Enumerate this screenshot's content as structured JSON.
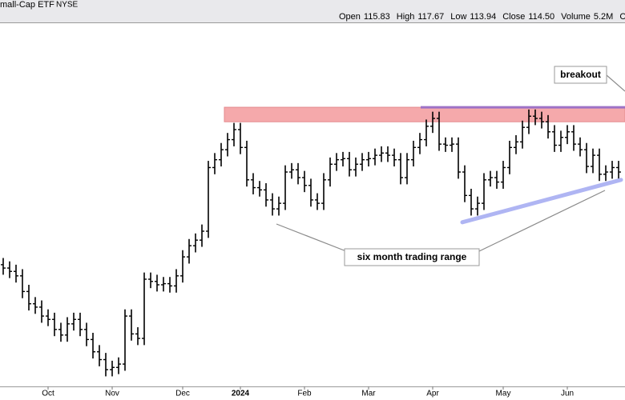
{
  "chart_data": {
    "type": "ohlc",
    "title": "mall-Cap ETF",
    "exchange": "NYSE",
    "quote": [
      {
        "name": "Open",
        "value": 115.83
      },
      {
        "name": "High",
        "value": 117.67
      },
      {
        "name": "Low",
        "value": 113.94
      },
      {
        "name": "Close",
        "value": 114.5,
        "value_label": "114.50"
      },
      {
        "name": "Volume",
        "value": 5200000,
        "value_label": "5.2M"
      }
    ],
    "quote_more": "C",
    "categories": [
      null,
      null,
      null,
      null,
      null,
      null,
      null,
      "Oct",
      null,
      null,
      null,
      null,
      null,
      null,
      null,
      null,
      null,
      "Nov",
      null,
      null,
      null,
      null,
      null,
      null,
      null,
      null,
      null,
      null,
      "Dec",
      null,
      null,
      null,
      null,
      null,
      null,
      null,
      null,
      "2024",
      null,
      null,
      null,
      null,
      null,
      null,
      null,
      null,
      null,
      "Feb",
      null,
      null,
      null,
      null,
      null,
      null,
      null,
      null,
      null,
      "Mar",
      null,
      null,
      null,
      null,
      null,
      null,
      null,
      null,
      null,
      "Apr",
      null,
      null,
      null,
      null,
      null,
      null,
      null,
      null,
      null,
      null,
      "May",
      null,
      null,
      null,
      null,
      null,
      null,
      null,
      null,
      null,
      "Jun",
      null,
      null,
      null,
      null,
      null,
      null,
      null,
      null
    ],
    "open": [
      106.3,
      106.0,
      105.7,
      105.3,
      103.9,
      102.8,
      102.5,
      101.7,
      101.4,
      100.5,
      100.0,
      101.0,
      101.4,
      100.5,
      99.6,
      98.5,
      97.8,
      96.9,
      97.1,
      97.4,
      101.7,
      100.1,
      99.7,
      105.0,
      104.8,
      104.5,
      104.6,
      104.4,
      105.3,
      107.0,
      108.0,
      108.5,
      109.3,
      115.0,
      115.7,
      116.6,
      117.5,
      118.4,
      116.8,
      113.9,
      113.2,
      113.0,
      112.1,
      111.3,
      111.8,
      114.6,
      114.8,
      114.1,
      113.4,
      112.1,
      111.8,
      113.9,
      115.3,
      115.7,
      115.8,
      114.8,
      115.3,
      115.7,
      115.8,
      116.1,
      116.3,
      116.1,
      115.7,
      114.1,
      115.7,
      116.8,
      117.5,
      118.7,
      119.4,
      117.1,
      117.0,
      117.1,
      114.6,
      112.5,
      111.3,
      111.8,
      113.9,
      114.1,
      113.7,
      115.0,
      116.8,
      117.3,
      118.6,
      119.6,
      119.4,
      119.1,
      118.2,
      117.0,
      117.7,
      118.2,
      117.1,
      116.6,
      115.1,
      116.1,
      114.4,
      114.6,
      115.0
    ],
    "high": [
      106.9,
      106.6,
      106.3,
      105.9,
      104.5,
      103.4,
      103.1,
      102.3,
      102.0,
      101.1,
      101.6,
      102.0,
      102.0,
      101.1,
      100.2,
      99.1,
      98.4,
      97.7,
      98.0,
      102.3,
      102.3,
      100.7,
      105.6,
      105.6,
      105.4,
      105.2,
      105.2,
      105.9,
      107.6,
      108.6,
      109.1,
      109.9,
      115.6,
      116.3,
      117.2,
      118.1,
      119.0,
      119.0,
      117.4,
      114.5,
      113.8,
      113.6,
      112.7,
      112.4,
      115.2,
      115.4,
      115.4,
      114.7,
      114.0,
      112.7,
      114.5,
      115.9,
      116.3,
      116.4,
      116.4,
      115.9,
      116.3,
      116.4,
      116.7,
      116.9,
      116.9,
      116.7,
      116.3,
      116.3,
      117.4,
      118.1,
      119.3,
      120.0,
      120.0,
      117.7,
      117.7,
      117.7,
      115.2,
      113.1,
      112.4,
      114.5,
      114.7,
      114.7,
      115.6,
      117.4,
      117.9,
      119.2,
      120.2,
      120.2,
      120.0,
      119.7,
      118.8,
      118.3,
      118.8,
      118.8,
      117.7,
      117.2,
      116.7,
      116.7,
      115.2,
      115.6,
      115.6
    ],
    "low": [
      105.4,
      105.1,
      104.7,
      103.3,
      102.2,
      101.9,
      101.1,
      100.8,
      99.9,
      99.4,
      99.4,
      100.4,
      99.9,
      99.0,
      97.9,
      97.2,
      96.3,
      96.3,
      96.5,
      96.8,
      99.5,
      99.1,
      99.1,
      104.2,
      103.9,
      103.9,
      103.8,
      103.8,
      104.7,
      106.4,
      107.4,
      107.9,
      108.7,
      114.4,
      115.1,
      116.0,
      116.9,
      116.2,
      113.3,
      112.6,
      112.4,
      111.5,
      110.7,
      110.7,
      111.2,
      114.0,
      113.5,
      112.8,
      111.5,
      111.2,
      111.2,
      113.3,
      114.7,
      115.1,
      114.2,
      114.2,
      114.7,
      115.1,
      115.2,
      115.5,
      115.5,
      115.1,
      113.5,
      113.5,
      115.1,
      116.2,
      116.9,
      118.1,
      116.5,
      116.4,
      116.4,
      114.0,
      111.9,
      110.7,
      110.7,
      111.2,
      113.3,
      113.1,
      113.1,
      114.4,
      116.2,
      116.7,
      118.0,
      118.8,
      118.5,
      117.6,
      116.4,
      116.4,
      117.1,
      116.5,
      116.0,
      114.5,
      114.5,
      113.8,
      113.8,
      114.0,
      114.0
    ],
    "close": [
      106.0,
      105.7,
      105.3,
      103.9,
      102.8,
      102.5,
      101.7,
      101.4,
      100.5,
      100.0,
      101.0,
      101.4,
      100.5,
      99.6,
      98.5,
      97.8,
      96.9,
      97.1,
      97.4,
      101.7,
      100.1,
      99.7,
      105.0,
      104.8,
      104.5,
      104.6,
      104.4,
      105.3,
      107.0,
      108.0,
      108.5,
      109.3,
      115.0,
      115.7,
      116.6,
      117.5,
      118.4,
      116.8,
      113.9,
      113.2,
      113.0,
      112.1,
      111.3,
      111.8,
      114.6,
      114.8,
      114.1,
      113.4,
      112.1,
      111.8,
      113.9,
      115.3,
      115.7,
      115.8,
      114.8,
      115.3,
      115.7,
      115.8,
      116.1,
      116.3,
      116.1,
      115.7,
      114.1,
      115.7,
      116.8,
      117.5,
      118.7,
      119.4,
      117.1,
      117.0,
      117.1,
      114.6,
      112.5,
      111.3,
      111.8,
      113.9,
      114.1,
      113.7,
      115.0,
      116.8,
      117.3,
      118.6,
      119.6,
      119.4,
      119.1,
      118.2,
      117.0,
      117.7,
      118.2,
      117.1,
      116.6,
      115.1,
      116.1,
      114.4,
      114.6,
      115.0,
      114.6
    ],
    "color": "#000000",
    "ylim": [
      95.4,
      128.0
    ],
    "zone": {
      "low": 119.1,
      "high": 120.4,
      "color": "#f5a9ab"
    },
    "top_line": {
      "value": 120.4,
      "color": "#9d72c6"
    },
    "trendline": {
      "values": [
        110.1,
        113.9
      ],
      "color": "#a7adf2"
    },
    "labels": [
      {
        "text": "breakout",
        "color": "#1c2a8c"
      },
      {
        "text": "six month trading range",
        "color": "#000000"
      }
    ]
  }
}
